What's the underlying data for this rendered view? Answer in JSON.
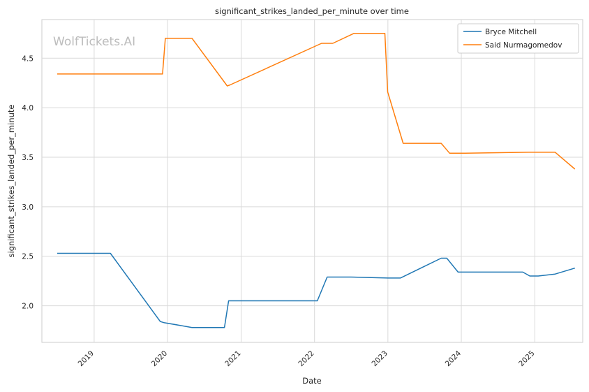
{
  "chart_data": {
    "type": "line",
    "title": "significant_strikes_landed_per_minute over time",
    "xlabel": "Date",
    "ylabel": "significant_strikes_landed_per_minute",
    "watermark": "WolfTickets.AI",
    "x_ticks": [
      "2019",
      "2020",
      "2021",
      "2022",
      "2023",
      "2024",
      "2025"
    ],
    "y_ticks": [
      "2.0",
      "2.5",
      "3.0",
      "3.5",
      "4.0",
      "4.5"
    ],
    "xlim": [
      "2018-04-16",
      "2025-08-27"
    ],
    "ylim": [
      1.63,
      4.89
    ],
    "grid": true,
    "legend_position": "top-right",
    "series": [
      {
        "name": "Bryce Mitchell",
        "color": "#1f77b4",
        "points": [
          [
            "2018-07-01",
            2.53
          ],
          [
            "2019-03-23",
            2.53
          ],
          [
            "2019-11-26",
            1.84
          ],
          [
            "2019-12-14",
            1.83
          ],
          [
            "2020-05-02",
            1.78
          ],
          [
            "2020-10-10",
            1.78
          ],
          [
            "2020-10-31",
            2.05
          ],
          [
            "2022-01-15",
            2.05
          ],
          [
            "2022-03-05",
            2.29
          ],
          [
            "2022-07-01",
            2.29
          ],
          [
            "2023-01-01",
            2.28
          ],
          [
            "2023-03-04",
            2.28
          ],
          [
            "2023-09-23",
            2.48
          ],
          [
            "2023-10-21",
            2.48
          ],
          [
            "2023-12-16",
            2.34
          ],
          [
            "2024-11-02",
            2.34
          ],
          [
            "2024-12-07",
            2.3
          ],
          [
            "2025-01-18",
            2.3
          ],
          [
            "2025-04-12",
            2.32
          ],
          [
            "2025-07-19",
            2.38
          ]
        ]
      },
      {
        "name": "Said Nurmagomedov",
        "color": "#ff7f0e",
        "points": [
          [
            "2018-07-01",
            4.34
          ],
          [
            "2019-12-07",
            4.34
          ],
          [
            "2019-12-21",
            4.7
          ],
          [
            "2020-05-02",
            4.7
          ],
          [
            "2020-10-24",
            4.22
          ],
          [
            "2020-11-07",
            4.23
          ],
          [
            "2022-02-05",
            4.65
          ],
          [
            "2022-04-02",
            4.65
          ],
          [
            "2022-07-16",
            4.75
          ],
          [
            "2022-12-17",
            4.75
          ],
          [
            "2022-12-31",
            4.16
          ],
          [
            "2023-03-18",
            3.64
          ],
          [
            "2023-09-23",
            3.64
          ],
          [
            "2023-11-04",
            3.54
          ],
          [
            "2024-01-20",
            3.54
          ],
          [
            "2024-11-30",
            3.55
          ],
          [
            "2025-04-12",
            3.55
          ],
          [
            "2025-07-19",
            3.38
          ]
        ]
      }
    ]
  }
}
